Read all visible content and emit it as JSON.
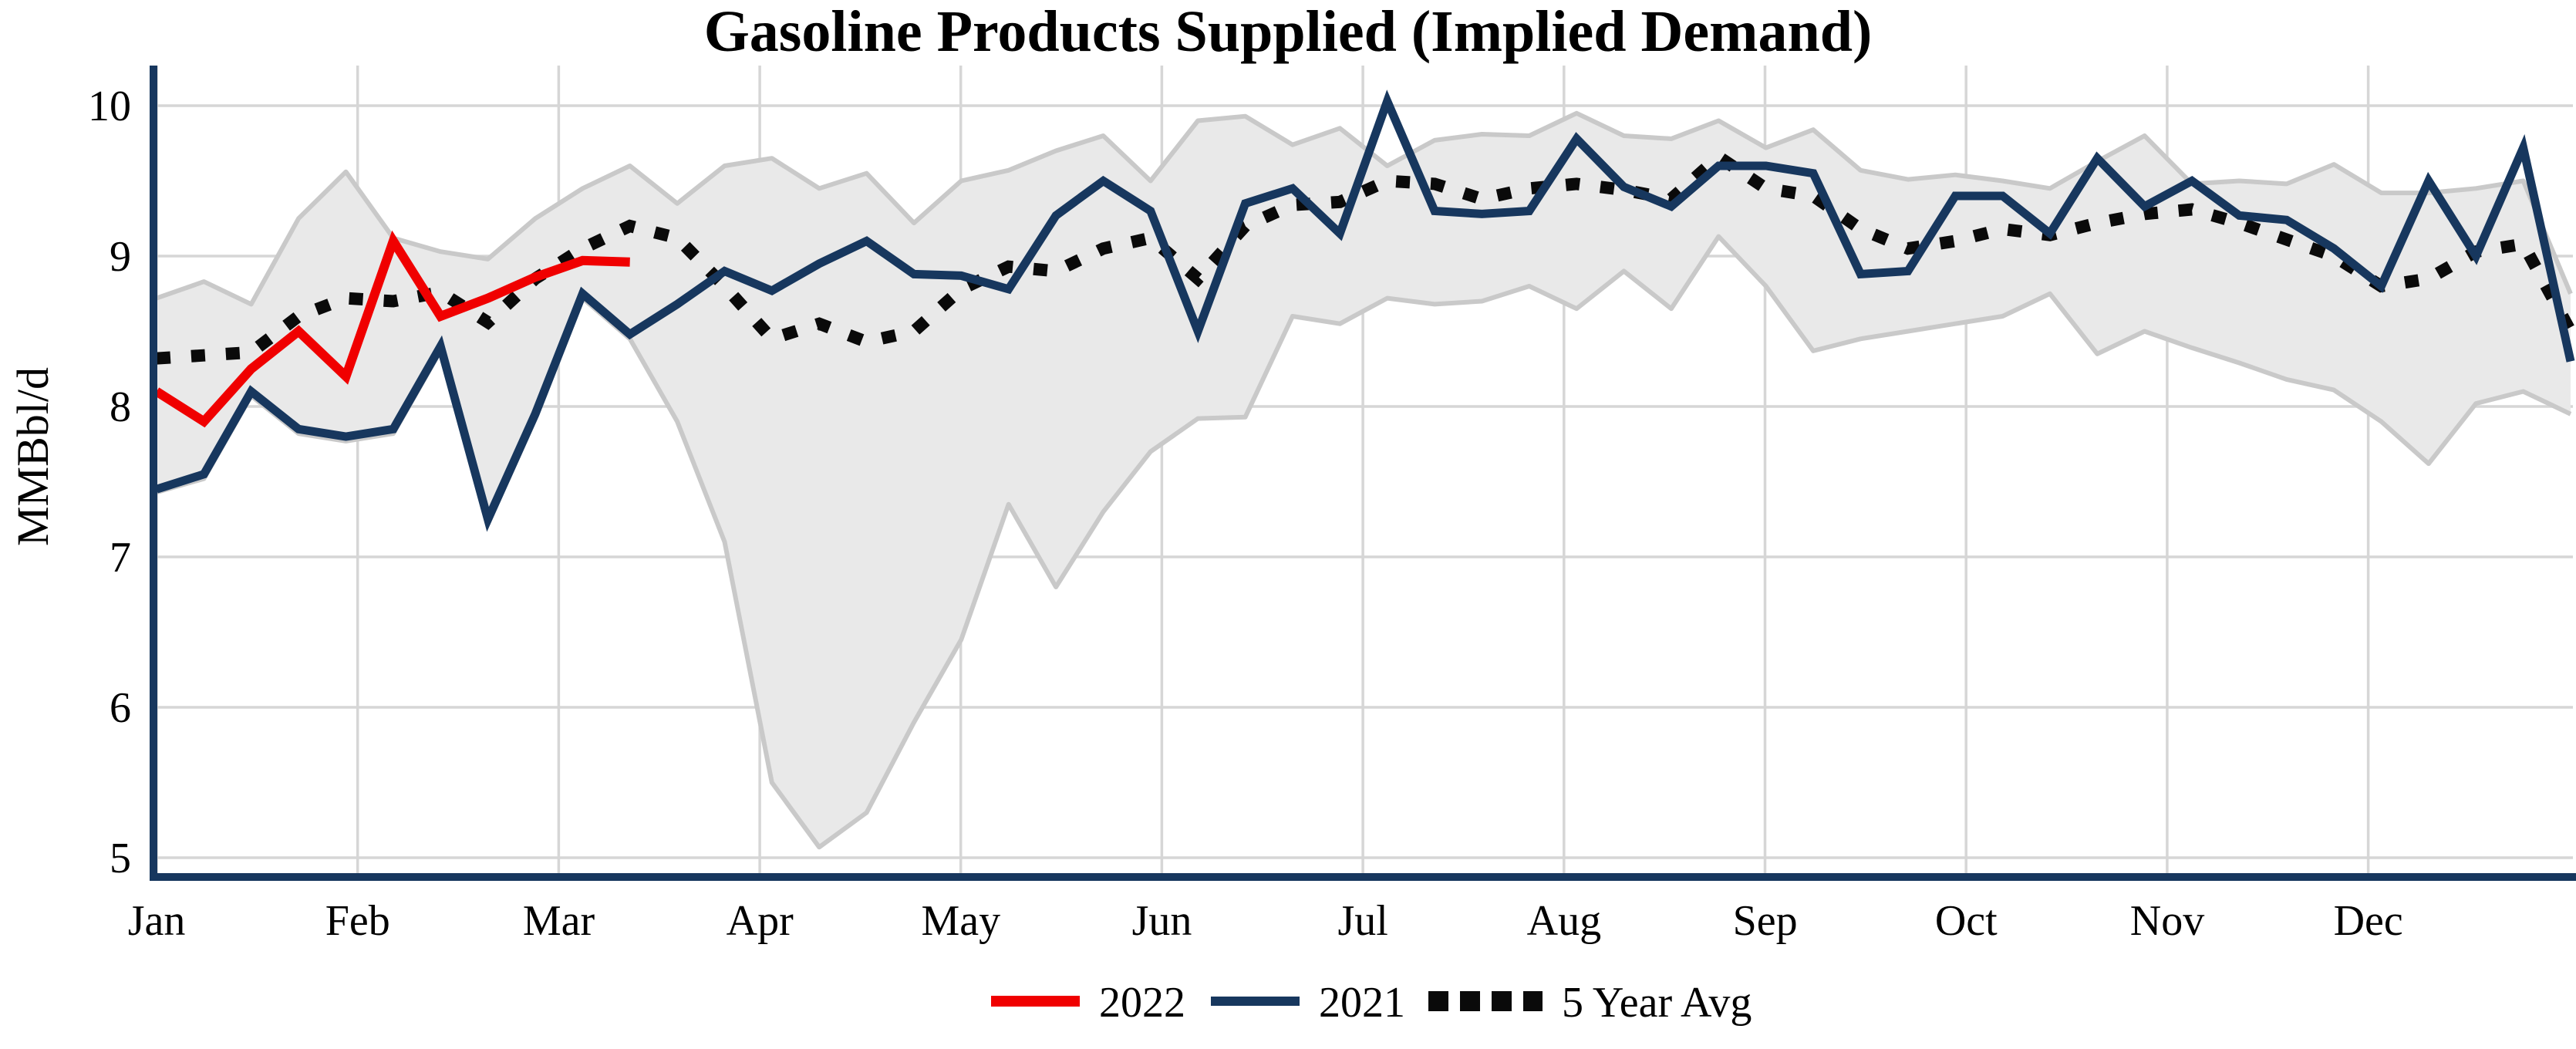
{
  "title": "Gasoline Products Supplied (Implied Demand)",
  "y_axis": {
    "label": "MMBbl/d",
    "ticks": [
      10,
      9,
      8,
      7,
      6,
      5
    ],
    "min": 5,
    "max": 10
  },
  "x_axis": {
    "months": [
      "Jan",
      "Feb",
      "Mar",
      "Apr",
      "May",
      "Jun",
      "Jul",
      "Aug",
      "Sep",
      "Oct",
      "Nov",
      "Dec"
    ]
  },
  "legend": {
    "items": [
      {
        "label": "2022",
        "color": "#f00000",
        "style": "solid"
      },
      {
        "label": "2021",
        "color": "#17375e",
        "style": "solid"
      },
      {
        "label": "5 Year Avg",
        "color": "#0a0a0a",
        "style": "dotted"
      }
    ]
  },
  "colors": {
    "axis": "#17375e",
    "grid": "#d6d6d6",
    "band_fill": "#e9e9e9",
    "band_edge": "#c9c9c9",
    "series_2022": "#f00000",
    "series_2021": "#17375e",
    "series_avg": "#0a0a0a"
  },
  "chart_data": {
    "type": "line",
    "title": "Gasoline Products Supplied (Implied Demand)",
    "ylabel": "MMBbl/d",
    "ylim": [
      5,
      10.27
    ],
    "x_unit": "week-of-year",
    "weeks": 52,
    "grid": true,
    "legend_position": "bottom-center",
    "series": [
      {
        "name": "2022",
        "color": "#f00000",
        "line_style": "solid",
        "values": [
          8.1,
          7.9,
          8.25,
          8.5,
          8.2,
          9.1,
          8.6,
          8.72,
          8.86,
          8.97,
          8.96
        ]
      },
      {
        "name": "2021",
        "color": "#17375e",
        "line_style": "solid",
        "values": [
          7.45,
          7.55,
          8.1,
          7.85,
          7.8,
          7.85,
          8.4,
          7.25,
          7.95,
          8.75,
          8.48,
          8.68,
          8.9,
          8.77,
          8.95,
          9.1,
          8.88,
          8.87,
          8.78,
          9.27,
          9.5,
          9.3,
          8.5,
          9.35,
          9.45,
          9.15,
          10.03,
          9.3,
          9.28,
          9.3,
          9.78,
          9.46,
          9.33,
          9.6,
          9.6,
          9.55,
          8.88,
          8.9,
          9.4,
          9.4,
          9.15,
          9.65,
          9.33,
          9.5,
          9.27,
          9.24,
          9.05,
          8.8,
          9.5,
          9.0,
          9.72,
          8.3
        ]
      },
      {
        "name": "5 Year Avg",
        "color": "#0a0a0a",
        "line_style": "dotted",
        "values": [
          8.32,
          8.34,
          8.36,
          8.6,
          8.72,
          8.7,
          8.76,
          8.56,
          8.85,
          9.05,
          9.2,
          9.12,
          8.8,
          8.45,
          8.55,
          8.43,
          8.5,
          8.78,
          8.93,
          8.9,
          9.05,
          9.12,
          8.85,
          9.2,
          9.34,
          9.36,
          9.5,
          9.48,
          9.38,
          9.45,
          9.48,
          9.44,
          9.38,
          9.66,
          9.45,
          9.4,
          9.18,
          9.05,
          9.1,
          9.18,
          9.14,
          9.22,
          9.28,
          9.31,
          9.22,
          9.11,
          9.0,
          8.8,
          8.85,
          9.03,
          9.08,
          8.5
        ]
      }
    ],
    "band": {
      "name": "5 Year Range",
      "fill": "#e9e9e9",
      "top": [
        8.72,
        8.83,
        8.68,
        9.25,
        9.56,
        9.12,
        9.03,
        8.98,
        9.25,
        9.45,
        9.6,
        9.35,
        9.6,
        9.65,
        9.45,
        9.55,
        9.22,
        9.5,
        9.57,
        9.7,
        9.8,
        9.5,
        9.9,
        9.93,
        9.74,
        9.85,
        9.6,
        9.77,
        9.81,
        9.8,
        9.95,
        9.8,
        9.78,
        9.9,
        9.72,
        9.84,
        9.57,
        9.51,
        9.54,
        9.5,
        9.45,
        9.63,
        9.8,
        9.48,
        9.5,
        9.48,
        9.61,
        9.42,
        9.42,
        9.45,
        9.5,
        8.75
      ],
      "bottom": [
        7.43,
        7.52,
        8.07,
        7.82,
        7.77,
        7.82,
        8.37,
        7.22,
        7.92,
        8.72,
        8.45,
        7.9,
        7.1,
        5.5,
        5.07,
        5.3,
        5.9,
        6.45,
        7.35,
        6.8,
        7.3,
        7.7,
        7.92,
        7.93,
        8.6,
        8.55,
        8.72,
        8.68,
        8.7,
        8.8,
        8.65,
        8.9,
        8.65,
        9.13,
        8.8,
        8.37,
        8.45,
        8.5,
        8.55,
        8.6,
        8.75,
        8.35,
        8.5,
        8.39,
        8.29,
        8.18,
        8.11,
        7.9,
        7.62,
        8.02,
        8.1,
        7.95
      ]
    }
  }
}
